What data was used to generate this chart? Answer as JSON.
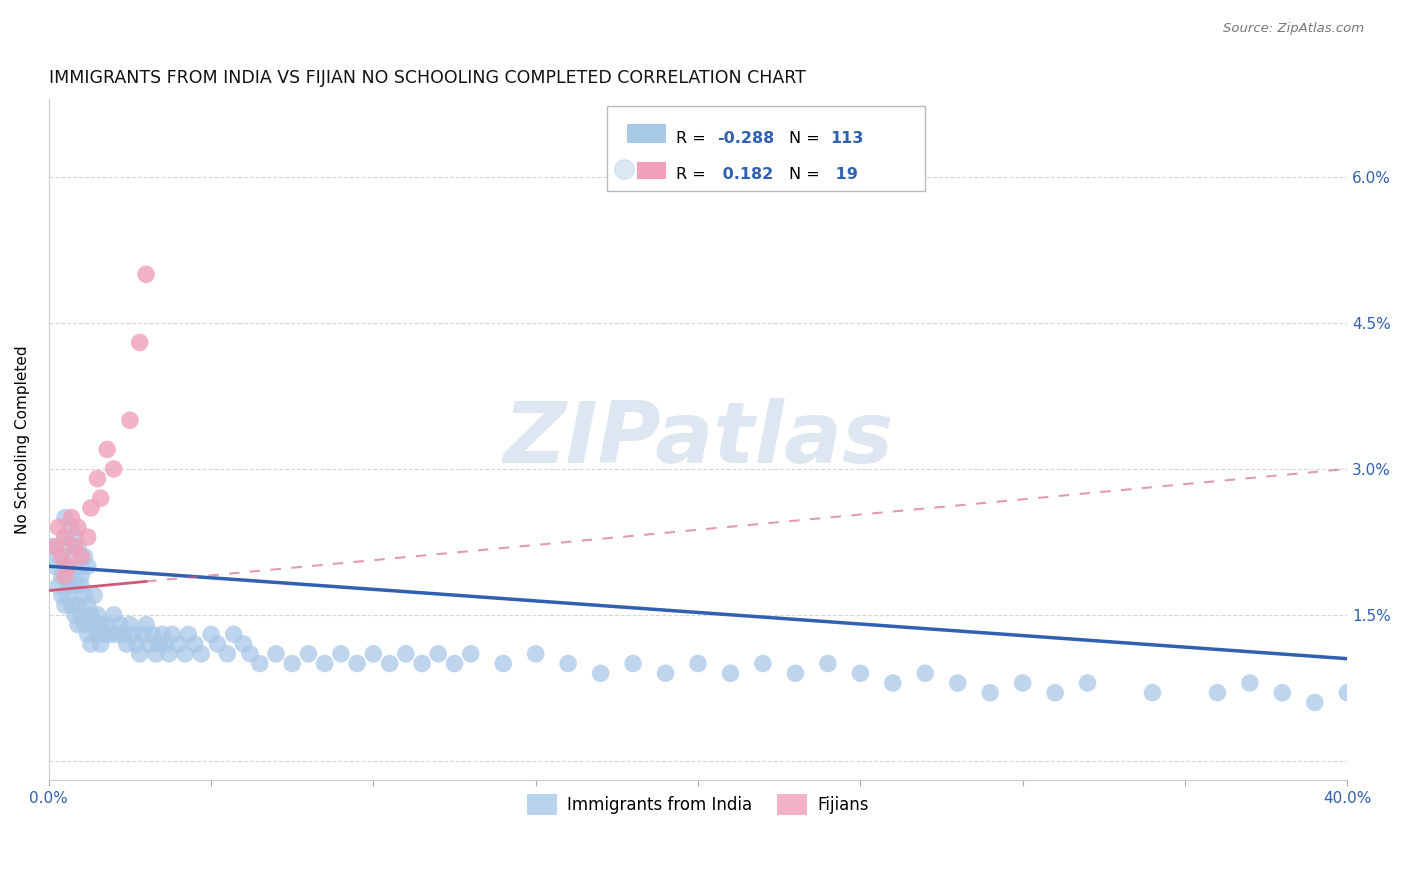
{
  "title": "IMMIGRANTS FROM INDIA VS FIJIAN NO SCHOOLING COMPLETED CORRELATION CHART",
  "source": "Source: ZipAtlas.com",
  "ylabel": "No Schooling Completed",
  "xmin": 0.0,
  "xmax": 0.4,
  "ymin": -0.002,
  "ymax": 0.068,
  "india_color": "#a8c8e8",
  "fijian_color": "#f0a0b8",
  "india_line_color": "#3060b0",
  "fijian_line_color": "#d05878",
  "india_r": "-0.288",
  "india_n": "113",
  "fijian_r": "0.182",
  "fijian_n": "19",
  "watermark": "ZIPatlas",
  "grid_color": "#cccccc",
  "yticks": [
    0.0,
    0.015,
    0.03,
    0.045,
    0.06
  ],
  "ytick_labels_right": [
    "",
    "1.5%",
    "3.0%",
    "4.5%",
    "6.0%"
  ],
  "xtick_labels": [
    "0.0%",
    "",
    "",
    "",
    "",
    "",
    "",
    "",
    "40.0%"
  ],
  "india_x": [
    0.001,
    0.002,
    0.003,
    0.003,
    0.004,
    0.004,
    0.005,
    0.005,
    0.006,
    0.006,
    0.007,
    0.007,
    0.008,
    0.008,
    0.009,
    0.009,
    0.01,
    0.01,
    0.01,
    0.011,
    0.011,
    0.012,
    0.012,
    0.013,
    0.013,
    0.014,
    0.014,
    0.015,
    0.015,
    0.016,
    0.016,
    0.017,
    0.018,
    0.019,
    0.02,
    0.021,
    0.022,
    0.023,
    0.024,
    0.025,
    0.026,
    0.027,
    0.028,
    0.029,
    0.03,
    0.031,
    0.032,
    0.033,
    0.034,
    0.035,
    0.036,
    0.037,
    0.038,
    0.04,
    0.042,
    0.043,
    0.045,
    0.047,
    0.05,
    0.052,
    0.055,
    0.057,
    0.06,
    0.062,
    0.065,
    0.07,
    0.075,
    0.08,
    0.085,
    0.09,
    0.095,
    0.1,
    0.105,
    0.11,
    0.115,
    0.12,
    0.125,
    0.13,
    0.14,
    0.15,
    0.16,
    0.17,
    0.18,
    0.19,
    0.2,
    0.21,
    0.22,
    0.23,
    0.24,
    0.25,
    0.26,
    0.27,
    0.28,
    0.29,
    0.3,
    0.31,
    0.32,
    0.34,
    0.36,
    0.37,
    0.38,
    0.39,
    0.4,
    0.005,
    0.005,
    0.006,
    0.007,
    0.007,
    0.008,
    0.009,
    0.01,
    0.011,
    0.012
  ],
  "india_y": [
    0.022,
    0.02,
    0.018,
    0.021,
    0.019,
    0.017,
    0.016,
    0.02,
    0.018,
    0.017,
    0.016,
    0.019,
    0.015,
    0.018,
    0.016,
    0.014,
    0.02,
    0.018,
    0.015,
    0.017,
    0.014,
    0.016,
    0.013,
    0.015,
    0.012,
    0.014,
    0.017,
    0.015,
    0.013,
    0.014,
    0.012,
    0.013,
    0.014,
    0.013,
    0.015,
    0.013,
    0.014,
    0.013,
    0.012,
    0.014,
    0.013,
    0.012,
    0.011,
    0.013,
    0.014,
    0.012,
    0.013,
    0.011,
    0.012,
    0.013,
    0.012,
    0.011,
    0.013,
    0.012,
    0.011,
    0.013,
    0.012,
    0.011,
    0.013,
    0.012,
    0.011,
    0.013,
    0.012,
    0.011,
    0.01,
    0.011,
    0.01,
    0.011,
    0.01,
    0.011,
    0.01,
    0.011,
    0.01,
    0.011,
    0.01,
    0.011,
    0.01,
    0.011,
    0.01,
    0.011,
    0.01,
    0.009,
    0.01,
    0.009,
    0.01,
    0.009,
    0.01,
    0.009,
    0.01,
    0.009,
    0.008,
    0.009,
    0.008,
    0.007,
    0.008,
    0.007,
    0.008,
    0.007,
    0.007,
    0.008,
    0.007,
    0.006,
    0.007,
    0.025,
    0.023,
    0.022,
    0.024,
    0.021,
    0.023,
    0.022,
    0.019,
    0.021,
    0.02
  ],
  "fijian_x": [
    0.002,
    0.003,
    0.004,
    0.005,
    0.005,
    0.006,
    0.007,
    0.008,
    0.009,
    0.01,
    0.012,
    0.013,
    0.015,
    0.016,
    0.018,
    0.02,
    0.025,
    0.028,
    0.03
  ],
  "fijian_y": [
    0.022,
    0.024,
    0.021,
    0.023,
    0.019,
    0.02,
    0.025,
    0.022,
    0.024,
    0.021,
    0.023,
    0.026,
    0.029,
    0.027,
    0.032,
    0.03,
    0.035,
    0.043,
    0.05
  ],
  "india_trendline": [
    0.0,
    0.4,
    0.02,
    0.0105
  ],
  "fijian_trendline": [
    0.0,
    0.4,
    0.0175,
    0.03
  ]
}
